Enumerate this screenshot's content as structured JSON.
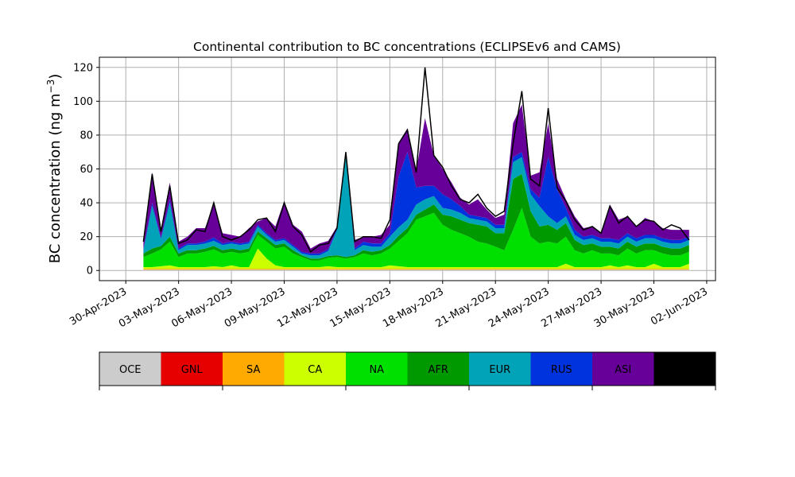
{
  "chart_data": {
    "type": "area",
    "title": "Continental contribution to BC concentrations (ECLIPSEv6 and CAMS)",
    "ylabel": "BC concentration (ng m",
    "ylabel_sup": "−3",
    "ylabel_close": ")",
    "xlabel": "",
    "stacked": true,
    "grid": true,
    "ylim": [
      -6,
      126
    ],
    "xlim": [
      -1.5,
      33.5
    ],
    "x_origin_label": "30-Apr-2023",
    "yticks": [
      0,
      20,
      40,
      60,
      80,
      100,
      120
    ],
    "xticks": [
      {
        "day": 0,
        "label": "30-Apr-2023"
      },
      {
        "day": 3,
        "label": "03-May-2023"
      },
      {
        "day": 6,
        "label": "06-May-2023"
      },
      {
        "day": 9,
        "label": "09-May-2023"
      },
      {
        "day": 12,
        "label": "12-May-2023"
      },
      {
        "day": 15,
        "label": "15-May-2023"
      },
      {
        "day": 18,
        "label": "18-May-2023"
      },
      {
        "day": 21,
        "label": "21-May-2023"
      },
      {
        "day": 24,
        "label": "24-May-2023"
      },
      {
        "day": 27,
        "label": "27-May-2023"
      },
      {
        "day": 30,
        "label": "30-May-2023"
      },
      {
        "day": 33,
        "label": "02-Jun-2023"
      }
    ],
    "legend": {
      "placement": "bottom",
      "entries": [
        {
          "name": "OCE",
          "color": "#cccccc"
        },
        {
          "name": "GNL",
          "color": "#e60000"
        },
        {
          "name": "SA",
          "color": "#ffaa00"
        },
        {
          "name": "CA",
          "color": "#ccff00"
        },
        {
          "name": "NA",
          "color": "#00e000"
        },
        {
          "name": "AFR",
          "color": "#009900"
        },
        {
          "name": "EUR",
          "color": "#00a3b8"
        },
        {
          "name": "RUS",
          "color": "#0033dd"
        },
        {
          "name": "ASI",
          "color": "#660099"
        },
        {
          "name": "AUS",
          "color": "#000000"
        }
      ]
    },
    "series_order_bottom_to_top": [
      "OCE",
      "GNL",
      "SA",
      "CA",
      "NA",
      "AFR",
      "EUR",
      "RUS",
      "ASI"
    ],
    "days": [
      1.0,
      1.5,
      2.0,
      2.5,
      3.0,
      3.5,
      4.0,
      4.5,
      5.0,
      5.5,
      6.0,
      6.5,
      7.0,
      7.5,
      8.0,
      8.5,
      9.0,
      9.5,
      10.0,
      10.5,
      11.0,
      11.5,
      12.0,
      12.5,
      13.0,
      13.5,
      14.0,
      14.5,
      15.0,
      15.5,
      16.0,
      16.5,
      17.0,
      17.5,
      18.0,
      18.5,
      19.0,
      19.5,
      20.0,
      20.5,
      21.0,
      21.5,
      22.0,
      22.5,
      23.0,
      23.5,
      24.0,
      24.5,
      25.0,
      25.5,
      26.0,
      26.5,
      27.0,
      27.5,
      28.0,
      28.5,
      29.0,
      29.5,
      30.0,
      30.5,
      31.0,
      31.5,
      32.0
    ],
    "series": [
      {
        "name": "OCE",
        "values": [
          0.5,
          0.5,
          0.5,
          0.5,
          0.5,
          0.5,
          0.5,
          0.5,
          0.5,
          0.5,
          0.5,
          0.5,
          0.5,
          0.5,
          0.5,
          0.5,
          0.5,
          0.5,
          0.5,
          0.5,
          0.5,
          0.5,
          0.5,
          0.5,
          0.5,
          0.5,
          0.5,
          0.5,
          0.5,
          0.5,
          0.5,
          0.5,
          0.5,
          0.5,
          0.5,
          0.5,
          0.5,
          0.5,
          0.5,
          0.5,
          0.5,
          0.5,
          0.5,
          0.5,
          0.5,
          0.5,
          0.5,
          0.5,
          0.5,
          0.5,
          0.5,
          0.5,
          0.5,
          0.5,
          0.5,
          0.5,
          0.5,
          0.5,
          0.5,
          0.5,
          0.5,
          0.5,
          0.5
        ]
      },
      {
        "name": "GNL",
        "values": [
          0,
          0,
          0,
          0,
          0,
          0,
          0,
          0,
          0,
          0,
          0,
          0,
          0,
          0,
          0,
          0,
          0,
          0,
          0,
          0,
          0,
          0,
          0,
          0,
          0,
          0,
          0,
          0,
          0,
          0,
          0,
          0,
          0,
          0,
          0,
          0,
          0,
          0,
          0,
          0,
          0,
          0,
          0,
          0,
          0,
          0,
          0,
          0,
          0,
          0,
          0,
          0,
          0,
          0,
          0,
          0,
          0,
          0,
          0,
          0,
          0,
          0,
          0
        ]
      },
      {
        "name": "SA",
        "values": [
          0.5,
          0.5,
          0.5,
          0.5,
          0.5,
          0.5,
          0.5,
          0.5,
          0.5,
          0.5,
          0.5,
          0.5,
          0.5,
          0.5,
          0.5,
          0.5,
          0.5,
          0.5,
          0.5,
          0.5,
          0.5,
          0.5,
          0.5,
          0.5,
          0.5,
          0.5,
          0.5,
          0.5,
          0.5,
          0.5,
          0.5,
          0.5,
          0.5,
          0.5,
          0.5,
          0.5,
          0.5,
          0.5,
          0.5,
          0.5,
          0.5,
          0.5,
          0.5,
          0.5,
          0.5,
          0.5,
          0.5,
          0.5,
          0.5,
          0.5,
          0.5,
          0.5,
          0.5,
          0.5,
          0.5,
          0.5,
          0.5,
          0.5,
          0.5,
          0.5,
          0.5,
          0.5,
          0.5
        ]
      },
      {
        "name": "CA",
        "values": [
          1,
          1,
          1.5,
          2,
          1,
          1,
          1,
          1,
          1.5,
          1,
          2,
          1,
          1,
          12,
          6,
          2,
          1,
          1,
          1,
          1,
          1,
          1.5,
          1,
          1,
          1,
          1,
          1,
          1,
          2,
          1.5,
          1,
          1,
          1,
          1,
          1,
          1,
          1,
          1,
          1,
          1,
          1,
          1,
          1,
          1,
          1,
          1,
          1,
          1,
          3,
          1,
          1,
          1,
          1,
          2,
          1,
          2,
          1,
          1,
          3,
          1,
          1,
          1,
          3
        ]
      },
      {
        "name": "NA",
        "values": [
          6,
          8,
          10,
          14,
          6,
          8,
          8,
          9,
          10,
          8,
          8,
          8,
          9,
          8,
          10,
          10,
          12,
          8,
          6,
          4,
          4,
          5,
          6,
          5,
          6,
          8,
          7,
          8,
          10,
          15,
          20,
          28,
          30,
          32,
          25,
          22,
          20,
          18,
          15,
          14,
          12,
          10,
          22,
          35,
          18,
          14,
          15,
          14,
          16,
          10,
          8,
          10,
          8,
          7,
          7,
          10,
          8,
          10,
          8,
          8,
          7,
          7,
          7
        ]
      },
      {
        "name": "AFR",
        "values": [
          2,
          3,
          2,
          3,
          2,
          2,
          2,
          2,
          2,
          2,
          2,
          2,
          2,
          2,
          2,
          2,
          2,
          2,
          1,
          1,
          1,
          1,
          1,
          1,
          1,
          2,
          2,
          2,
          2,
          3,
          3,
          3,
          4,
          5,
          6,
          8,
          8,
          8,
          10,
          10,
          8,
          10,
          30,
          20,
          15,
          10,
          10,
          8,
          8,
          6,
          5,
          4,
          4,
          4,
          4,
          4,
          4,
          4,
          4,
          4,
          4,
          4,
          4
        ]
      },
      {
        "name": "EUR",
        "values": [
          2,
          25,
          4,
          20,
          2,
          3,
          3,
          3,
          3,
          3,
          3,
          3,
          3,
          3,
          2,
          2,
          2,
          2,
          1,
          2,
          2,
          3,
          15,
          60,
          3,
          3,
          3,
          2,
          5,
          5,
          5,
          6,
          6,
          5,
          4,
          4,
          4,
          3,
          3,
          3,
          3,
          3,
          10,
          10,
          10,
          12,
          5,
          4,
          4,
          3,
          3,
          3,
          3,
          3,
          3,
          3,
          3,
          3,
          3,
          3,
          3,
          3,
          3
        ]
      },
      {
        "name": "RUS",
        "values": [
          1,
          2,
          1,
          2,
          1,
          1,
          1,
          1,
          2,
          1,
          1,
          1,
          1,
          1,
          1,
          1,
          1,
          1,
          1,
          1,
          1,
          1,
          1,
          1,
          1,
          2,
          2,
          2,
          2,
          30,
          40,
          10,
          8,
          6,
          8,
          6,
          4,
          2,
          2,
          2,
          2,
          2,
          3,
          3,
          3,
          5,
          35,
          20,
          5,
          3,
          2,
          2,
          2,
          2,
          2,
          2,
          2,
          2,
          2,
          2,
          2,
          2,
          2
        ]
      },
      {
        "name": "ASI",
        "values": [
          5,
          18,
          5,
          10,
          4,
          4,
          9,
          8,
          20,
          6,
          4,
          4,
          8,
          2,
          9,
          8,
          22,
          12,
          12,
          3,
          6,
          5,
          1,
          1,
          5,
          3,
          4,
          5,
          5,
          20,
          14,
          10,
          40,
          18,
          15,
          10,
          5,
          6,
          10,
          5,
          4,
          6,
          20,
          28,
          8,
          15,
          20,
          6,
          5,
          8,
          5,
          5,
          3,
          20,
          12,
          10,
          7,
          10,
          8,
          6,
          6,
          6,
          4
        ]
      }
    ],
    "total_line": [
      17,
      57,
      23,
      50,
      16,
      18,
      24,
      23,
      40,
      20,
      18,
      20,
      24,
      30,
      31,
      23,
      40,
      26,
      21,
      11,
      15,
      16,
      25,
      70,
      17,
      20,
      20,
      19,
      30,
      75,
      83,
      58,
      120,
      68,
      61,
      50,
      42,
      40,
      45,
      37,
      32,
      35,
      75,
      106,
      54,
      50,
      96,
      49,
      41,
      30,
      24,
      26,
      22,
      38,
      28,
      32,
      26,
      30,
      29,
      24,
      27,
      25,
      18
    ]
  }
}
